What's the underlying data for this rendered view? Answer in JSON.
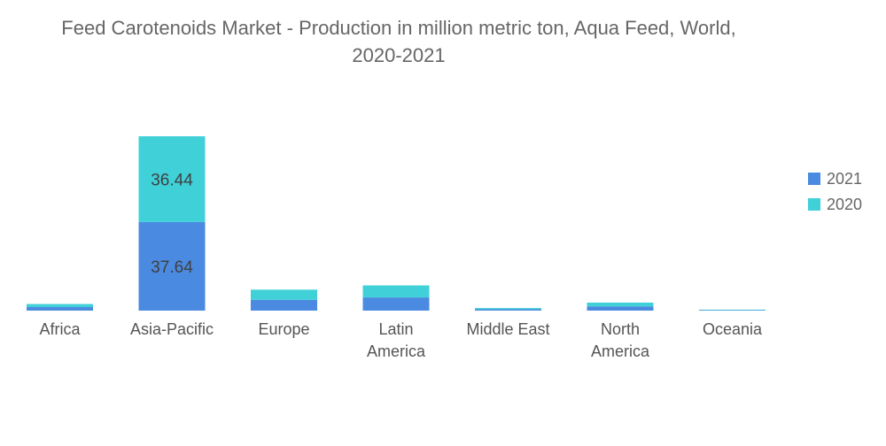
{
  "chart_data": {
    "type": "bar",
    "stacked": true,
    "title_line1": "Feed Carotenoids Market - Production in million metric ton, Aqua Feed, World,",
    "title_line2": "2020-2021",
    "xlabel": "",
    "ylabel": "",
    "categories": [
      "Africa",
      "Asia-Pacific",
      "Europe",
      "Latin America",
      "Middle East",
      "North America",
      "Oceania"
    ],
    "series": [
      {
        "name": "2021",
        "color": "#4a8ae0",
        "values": [
          1.5,
          37.64,
          4.6,
          5.6,
          0.6,
          1.8,
          0.2
        ]
      },
      {
        "name": "2020",
        "color": "#3fd0d8",
        "values": [
          1.3,
          36.44,
          4.3,
          5.1,
          0.5,
          1.6,
          0.2
        ]
      }
    ],
    "data_labels": [
      {
        "category": "Asia-Pacific",
        "series": "2021",
        "text": "37.64"
      },
      {
        "category": "Asia-Pacific",
        "series": "2020",
        "text": "36.44"
      }
    ],
    "ylim": [
      0,
      74.08
    ],
    "grid": false,
    "legend_position": "right"
  }
}
